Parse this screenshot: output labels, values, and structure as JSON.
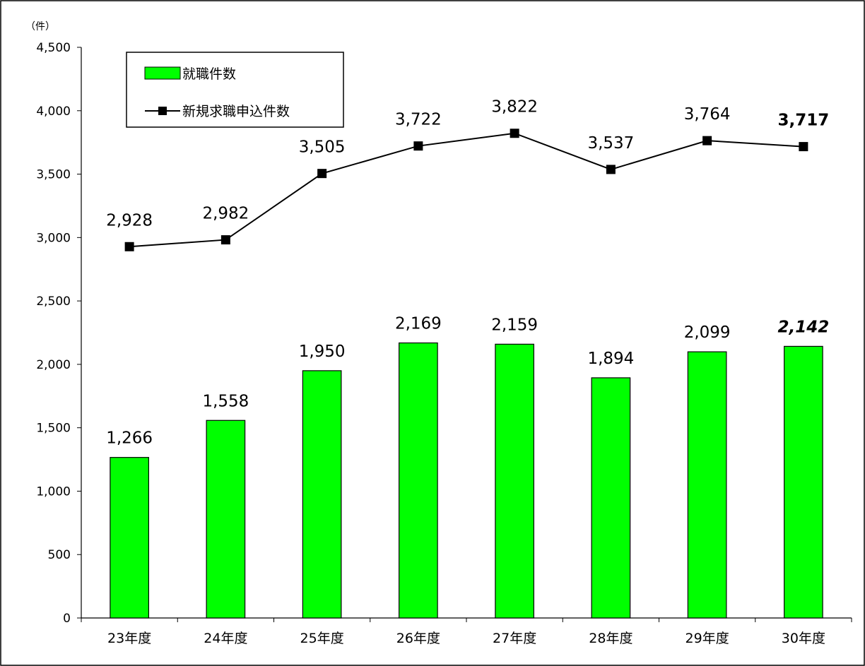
{
  "chart_data": {
    "type": "bar",
    "unit_label": "（件）",
    "categories": [
      "23年度",
      "24年度",
      "25年度",
      "26年度",
      "27年度",
      "28年度",
      "29年度",
      "30年度"
    ],
    "ylim": [
      0,
      4500
    ],
    "yticks": [
      0,
      500,
      1000,
      1500,
      2000,
      2500,
      3000,
      3500,
      4000,
      4500
    ],
    "ytick_labels": [
      "0",
      "500",
      "1,000",
      "1,500",
      "2,000",
      "2,500",
      "3,000",
      "3,500",
      "4,000",
      "4,500"
    ],
    "series": [
      {
        "name": "就職件数",
        "type": "bar",
        "color": "#00ff00",
        "values": [
          1266,
          1558,
          1950,
          2169,
          2159,
          1894,
          2099,
          2142
        ],
        "labels": [
          "1,266",
          "1,558",
          "1,950",
          "2,169",
          "2,159",
          "1,894",
          "2,099",
          "2,142"
        ],
        "emphasis_last": "bold-italic"
      },
      {
        "name": "新規求職申込件数",
        "type": "line",
        "color": "#000000",
        "marker": "square",
        "values": [
          2928,
          2982,
          3505,
          3722,
          3822,
          3537,
          3764,
          3717
        ],
        "labels": [
          "2,928",
          "2,982",
          "3,505",
          "3,722",
          "3,822",
          "3,537",
          "3,764",
          "3,717"
        ],
        "emphasis_last": "bold"
      }
    ],
    "legend_position": "top-left",
    "grid": false
  }
}
